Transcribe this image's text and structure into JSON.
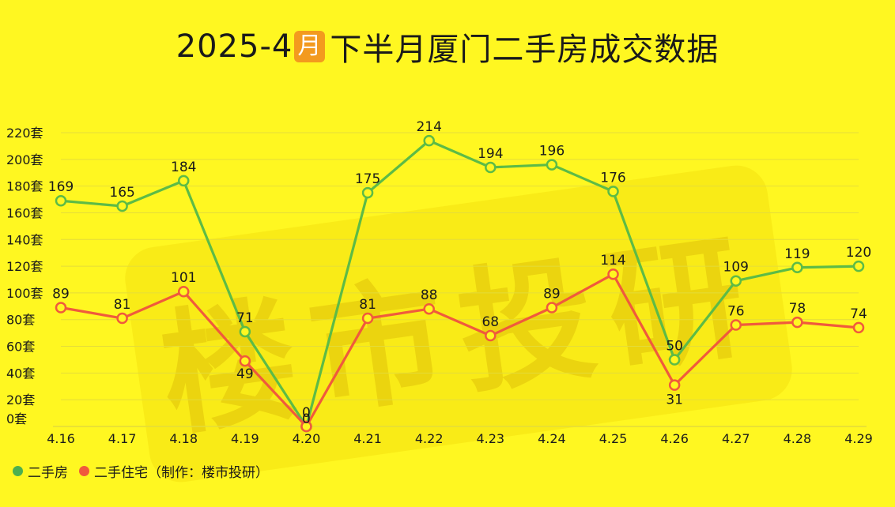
{
  "title": {
    "prefix": "2025-4",
    "badge": "月",
    "suffix": " 下半月厦门二手房成交数据"
  },
  "watermark": "楼市投研",
  "legend": {
    "items": [
      {
        "label": "二手房",
        "color": "#4CAF50"
      },
      {
        "label": "二手住宅（制作：楼市投研）",
        "color": "#F05A3C"
      }
    ]
  },
  "chart_data": {
    "type": "line",
    "categories": [
      "4.16",
      "4.17",
      "4.18",
      "4.19",
      "4.20",
      "4.21",
      "4.22",
      "4.23",
      "4.24",
      "4.25",
      "4.26",
      "4.27",
      "4.28",
      "4.29"
    ],
    "series": [
      {
        "name": "二手房",
        "color": "#5DBB46",
        "values": [
          169,
          165,
          184,
          71,
          0,
          175,
          214,
          194,
          196,
          176,
          50,
          109,
          119,
          120
        ]
      },
      {
        "name": "二手住宅",
        "color": "#F05A3C",
        "values": [
          89,
          81,
          101,
          49,
          0,
          81,
          88,
          68,
          89,
          114,
          31,
          76,
          78,
          74
        ]
      }
    ],
    "yticks": [
      "0套",
      "20套",
      "40套",
      "60套",
      "80套",
      "100套",
      "120套",
      "140套",
      "160套",
      "180套",
      "200套",
      "220套"
    ],
    "ylim": [
      0,
      220
    ],
    "grid": true,
    "legend_position": "bottom-left"
  }
}
